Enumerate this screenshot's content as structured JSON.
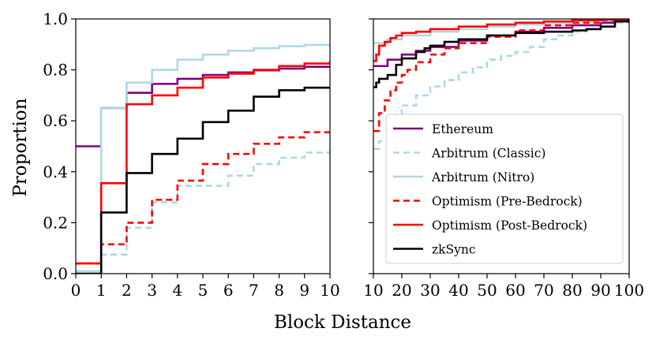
{
  "chart_data": [
    {
      "type": "line",
      "panel": "left",
      "step": true,
      "xlabel": "Block Distance",
      "ylabel": "Proportion",
      "xlim": [
        0,
        10
      ],
      "ylim": [
        0,
        1.0
      ],
      "xticks": [
        "0",
        "1",
        "2",
        "3",
        "4",
        "5",
        "6",
        "7",
        "8",
        "9",
        "10"
      ],
      "yticks": [
        "0.0",
        "0.2",
        "0.4",
        "0.6",
        "0.8",
        "1.0"
      ],
      "grid": false,
      "series": [
        {
          "name": "Ethereum",
          "color": "#800080",
          "dash": "solid",
          "x": [
            0,
            1,
            2,
            3,
            4,
            5,
            6,
            7,
            8,
            9,
            10
          ],
          "y": [
            0.5,
            0.65,
            0.71,
            0.745,
            0.765,
            0.78,
            0.79,
            0.798,
            0.805,
            0.812,
            0.815
          ]
        },
        {
          "name": "Arbitrum (Classic)",
          "color": "#add8e6",
          "dash": "dashed",
          "x": [
            0,
            1,
            2,
            3,
            4,
            5,
            6,
            7,
            8,
            9,
            10
          ],
          "y": [
            0.01,
            0.075,
            0.18,
            0.28,
            0.345,
            0.345,
            0.385,
            0.43,
            0.455,
            0.475,
            0.49
          ]
        },
        {
          "name": "Arbitrum (Nitro)",
          "color": "#add8e6",
          "dash": "solid",
          "x": [
            0,
            1,
            2,
            3,
            4,
            5,
            6,
            7,
            8,
            9,
            10
          ],
          "y": [
            0.01,
            0.65,
            0.75,
            0.8,
            0.84,
            0.86,
            0.875,
            0.885,
            0.893,
            0.898,
            0.902
          ]
        },
        {
          "name": "Optimism (Pre-Bedrock)",
          "color": "#ff0000",
          "dash": "dashed",
          "x": [
            0,
            1,
            2,
            3,
            4,
            5,
            6,
            7,
            8,
            9,
            10
          ],
          "y": [
            0.04,
            0.115,
            0.2,
            0.29,
            0.365,
            0.43,
            0.47,
            0.51,
            0.535,
            0.555,
            0.56
          ]
        },
        {
          "name": "Optimism (Post-Bedrock)",
          "color": "#ff0000",
          "dash": "solid",
          "x": [
            0,
            1,
            2,
            3,
            4,
            5,
            6,
            7,
            8,
            9,
            10
          ],
          "y": [
            0.04,
            0.355,
            0.665,
            0.7,
            0.73,
            0.77,
            0.785,
            0.8,
            0.815,
            0.825,
            0.835
          ]
        },
        {
          "name": "zkSync",
          "color": "#000000",
          "dash": "solid",
          "x": [
            0,
            1,
            2,
            3,
            4,
            5,
            6,
            7,
            8,
            9,
            10
          ],
          "y": [
            0.0,
            0.24,
            0.395,
            0.47,
            0.53,
            0.595,
            0.64,
            0.695,
            0.72,
            0.73,
            0.732
          ]
        }
      ]
    },
    {
      "type": "line",
      "panel": "right",
      "step": true,
      "xlim": [
        10,
        100
      ],
      "ylim": [
        0,
        1.0
      ],
      "xticks": [
        "10",
        "20",
        "30",
        "40",
        "50",
        "60",
        "70",
        "80",
        "90",
        "100"
      ],
      "shared_y": true,
      "grid": false,
      "legend_position": "lower-right",
      "series": [
        {
          "name": "Ethereum",
          "color": "#800080",
          "dash": "solid",
          "x": [
            10,
            15,
            20,
            25,
            30,
            40,
            50,
            60,
            70,
            80,
            90,
            95,
            100
          ],
          "y": [
            0.815,
            0.84,
            0.86,
            0.875,
            0.89,
            0.915,
            0.935,
            0.95,
            0.965,
            0.975,
            0.985,
            0.99,
            1.0
          ]
        },
        {
          "name": "Arbitrum (Classic)",
          "color": "#add8e6",
          "dash": "dashed",
          "x": [
            10,
            12,
            15,
            18,
            20,
            25,
            30,
            35,
            40,
            45,
            50,
            55,
            60,
            65,
            70,
            75,
            80,
            85,
            90,
            95,
            100
          ],
          "y": [
            0.49,
            0.52,
            0.575,
            0.62,
            0.66,
            0.7,
            0.735,
            0.76,
            0.79,
            0.81,
            0.84,
            0.855,
            0.87,
            0.89,
            0.92,
            0.935,
            0.95,
            0.96,
            0.97,
            0.985,
            1.0
          ]
        },
        {
          "name": "Arbitrum (Nitro)",
          "color": "#add8e6",
          "dash": "solid",
          "x": [
            10,
            15,
            20,
            30,
            40,
            50,
            60,
            70,
            80,
            90,
            100
          ],
          "y": [
            0.905,
            0.92,
            0.935,
            0.95,
            0.96,
            0.97,
            0.978,
            0.985,
            0.99,
            0.995,
            1.0
          ]
        },
        {
          "name": "Optimism (Pre-Bedrock)",
          "color": "#ff0000",
          "dash": "dashed",
          "x": [
            10,
            12,
            14,
            16,
            18,
            20,
            22,
            25,
            30,
            35,
            40,
            50,
            60,
            70,
            80,
            90,
            100
          ],
          "y": [
            0.56,
            0.63,
            0.68,
            0.72,
            0.75,
            0.78,
            0.8,
            0.83,
            0.86,
            0.885,
            0.905,
            0.93,
            0.955,
            0.975,
            0.985,
            0.995,
            1.0
          ]
        },
        {
          "name": "Optimism (Post-Bedrock)",
          "color": "#ff0000",
          "dash": "solid",
          "x": [
            10,
            11,
            12,
            14,
            16,
            18,
            20,
            25,
            30,
            40,
            50,
            60,
            70,
            80,
            90,
            100
          ],
          "y": [
            0.835,
            0.86,
            0.895,
            0.91,
            0.925,
            0.935,
            0.945,
            0.95,
            0.96,
            0.97,
            0.978,
            0.985,
            0.99,
            0.995,
            0.998,
            1.0
          ]
        },
        {
          "name": "zkSync",
          "color": "#000000",
          "dash": "solid",
          "x": [
            10,
            11,
            12,
            15,
            18,
            20,
            25,
            28,
            30,
            35,
            40,
            50,
            60,
            70,
            80,
            85,
            90,
            95,
            100
          ],
          "y": [
            0.732,
            0.75,
            0.765,
            0.78,
            0.82,
            0.845,
            0.87,
            0.885,
            0.895,
            0.91,
            0.92,
            0.935,
            0.945,
            0.95,
            0.955,
            0.96,
            0.97,
            0.99,
            1.0
          ]
        }
      ]
    }
  ]
}
